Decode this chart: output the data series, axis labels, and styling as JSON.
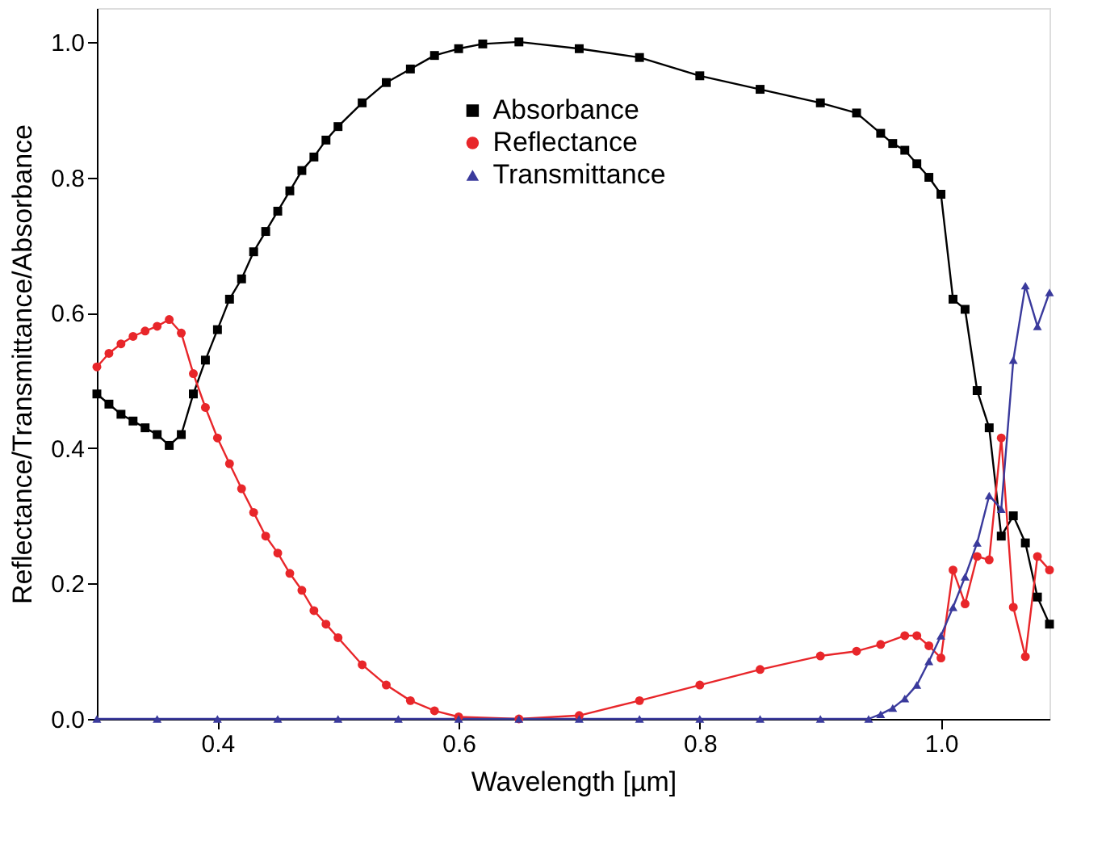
{
  "chart_data": {
    "type": "line",
    "xlabel": "Wavelength [µm]",
    "ylabel": "Reflectance/Transmittance/Absorbance",
    "xlim": [
      0.3,
      1.09
    ],
    "ylim": [
      0,
      1.05
    ],
    "xticks": [
      {
        "value": 0.4,
        "label": "0.4"
      },
      {
        "value": 0.6,
        "label": "0.6"
      },
      {
        "value": 0.8,
        "label": "0.8"
      },
      {
        "value": 1.0,
        "label": "1.0"
      }
    ],
    "yticks": [
      {
        "value": 0,
        "label": "0.0"
      },
      {
        "value": 0.2,
        "label": "0.2"
      },
      {
        "value": 0.4,
        "label": "0.4"
      },
      {
        "value": 0.6,
        "label": "0.6"
      },
      {
        "value": 0.8,
        "label": "0.8"
      },
      {
        "value": 1.0,
        "label": "1.0"
      }
    ],
    "grid": false,
    "legend": "top",
    "line_style": "solid",
    "series": [
      {
        "name": "Absorbance",
        "color": "#000000",
        "marker": "square",
        "x": [
          0.3,
          0.31,
          0.32,
          0.33,
          0.34,
          0.35,
          0.36,
          0.37,
          0.38,
          0.39,
          0.4,
          0.41,
          0.42,
          0.43,
          0.44,
          0.45,
          0.46,
          0.47,
          0.48,
          0.49,
          0.5,
          0.52,
          0.54,
          0.56,
          0.58,
          0.6,
          0.62,
          0.65,
          0.7,
          0.75,
          0.8,
          0.85,
          0.9,
          0.93,
          0.95,
          0.96,
          0.97,
          0.98,
          0.99,
          1.0,
          1.01,
          1.02,
          1.03,
          1.04,
          1.05,
          1.06,
          1.07,
          1.08,
          1.09
        ],
        "values": [
          0.48,
          0.465,
          0.45,
          0.44,
          0.43,
          0.42,
          0.404,
          0.42,
          0.48,
          0.53,
          0.575,
          0.62,
          0.65,
          0.69,
          0.72,
          0.75,
          0.78,
          0.81,
          0.83,
          0.855,
          0.875,
          0.91,
          0.94,
          0.96,
          0.98,
          0.99,
          0.997,
          1.0,
          0.99,
          0.977,
          0.95,
          0.93,
          0.91,
          0.895,
          0.865,
          0.85,
          0.84,
          0.82,
          0.8,
          0.775,
          0.62,
          0.605,
          0.485,
          0.43,
          0.27,
          0.3,
          0.26,
          0.18,
          0.14
        ]
      },
      {
        "name": "Reflectance",
        "color": "#e8262a",
        "marker": "circle",
        "x": [
          0.3,
          0.31,
          0.32,
          0.33,
          0.34,
          0.35,
          0.36,
          0.37,
          0.38,
          0.39,
          0.4,
          0.41,
          0.42,
          0.43,
          0.44,
          0.45,
          0.46,
          0.47,
          0.48,
          0.49,
          0.5,
          0.52,
          0.54,
          0.56,
          0.58,
          0.6,
          0.65,
          0.7,
          0.75,
          0.8,
          0.85,
          0.9,
          0.93,
          0.95,
          0.97,
          0.98,
          0.99,
          1.0,
          1.01,
          1.02,
          1.03,
          1.04,
          1.05,
          1.06,
          1.07,
          1.08,
          1.09
        ],
        "values": [
          0.52,
          0.54,
          0.554,
          0.565,
          0.573,
          0.58,
          0.59,
          0.57,
          0.51,
          0.46,
          0.415,
          0.377,
          0.34,
          0.305,
          0.27,
          0.245,
          0.215,
          0.19,
          0.16,
          0.14,
          0.12,
          0.08,
          0.05,
          0.027,
          0.012,
          0.003,
          0.0,
          0.005,
          0.027,
          0.05,
          0.073,
          0.093,
          0.1,
          0.11,
          0.123,
          0.123,
          0.108,
          0.09,
          0.22,
          0.17,
          0.24,
          0.235,
          0.415,
          0.165,
          0.092,
          0.24,
          0.22
        ]
      },
      {
        "name": "Transmittance",
        "color": "#3a3a9c",
        "marker": "triangle",
        "x": [
          0.3,
          0.35,
          0.4,
          0.45,
          0.5,
          0.55,
          0.6,
          0.65,
          0.7,
          0.75,
          0.8,
          0.85,
          0.9,
          0.94,
          0.95,
          0.96,
          0.97,
          0.98,
          0.99,
          1.0,
          1.01,
          1.02,
          1.03,
          1.04,
          1.05,
          1.06,
          1.07,
          1.08,
          1.09
        ],
        "values": [
          0,
          0,
          0,
          0,
          0,
          0,
          0,
          0,
          0,
          0,
          0,
          0,
          0,
          0,
          0.007,
          0.016,
          0.03,
          0.05,
          0.085,
          0.123,
          0.165,
          0.21,
          0.26,
          0.33,
          0.31,
          0.53,
          0.64,
          0.58,
          0.63
        ]
      }
    ]
  }
}
